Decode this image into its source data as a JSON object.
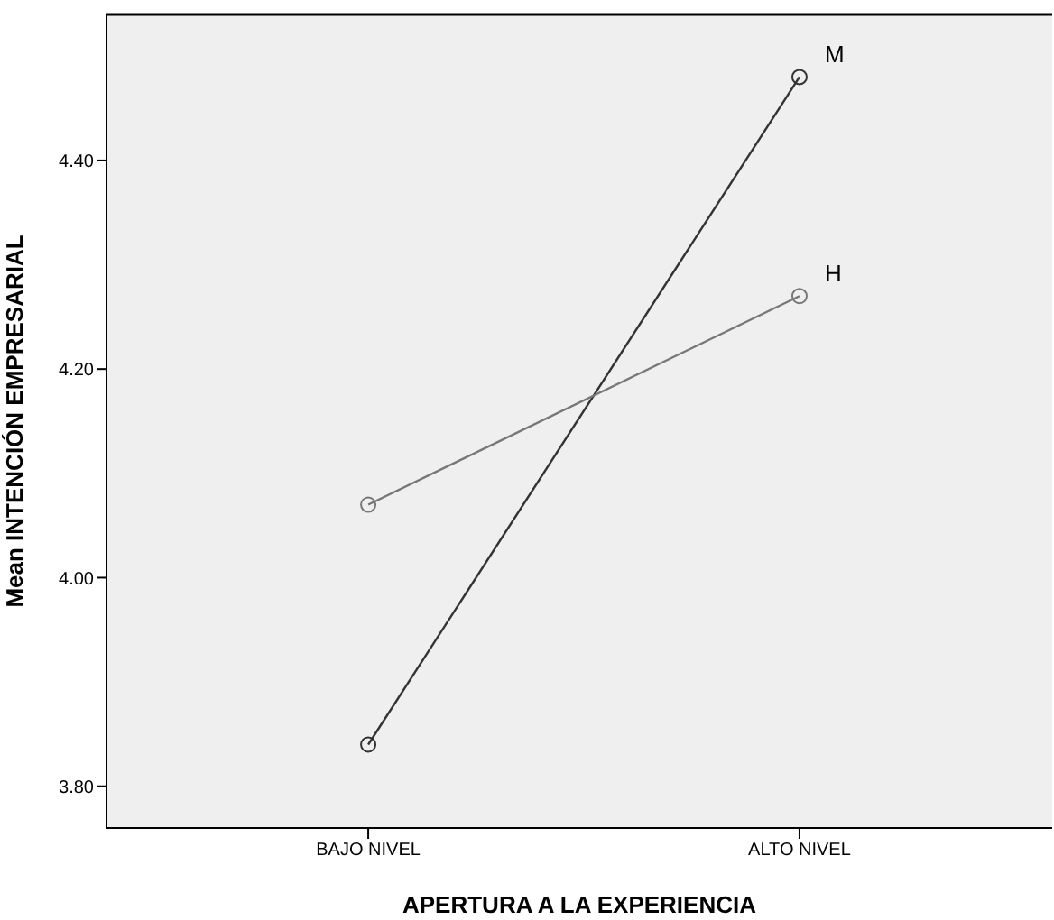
{
  "chart_data": {
    "type": "line",
    "xlabel": "APERTURA A LA EXPERIENCIA",
    "ylabel": "Mean INTENCIÓN EMPRESARIAL",
    "categories": [
      "BAJO NIVEL",
      "ALTO NIVEL"
    ],
    "series": [
      {
        "name": "M",
        "color": "#333333",
        "values": [
          3.84,
          4.48
        ]
      },
      {
        "name": "H",
        "color": "#777777",
        "values": [
          4.07,
          4.27
        ]
      }
    ],
    "ylim": [
      3.76,
      4.54
    ],
    "yticks": [
      {
        "value": 3.8,
        "label": "3.80"
      },
      {
        "value": 4.0,
        "label": "4.00"
      },
      {
        "value": 4.2,
        "label": "4.20"
      },
      {
        "value": 4.4,
        "label": "4.40"
      }
    ],
    "grid": false,
    "legend": false,
    "marker": "circle",
    "line_style": "solid"
  }
}
